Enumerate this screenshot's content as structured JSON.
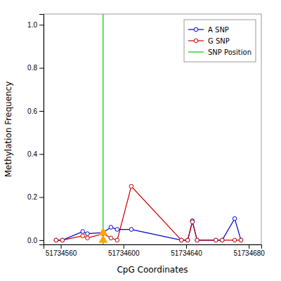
{
  "chart_data": {
    "type": "line",
    "xlabel": "CpG Coordinates",
    "ylabel": "Methylation Frequency",
    "x": [
      51734557,
      51734561,
      51734574,
      51734577,
      51734587,
      51734592,
      51734596,
      51734605,
      51734637,
      51734641,
      51734644,
      51734647,
      51734659,
      51734663,
      51734671,
      51734675
    ],
    "series": [
      {
        "name": "A SNP",
        "color": "#0000CC",
        "marker": "circle",
        "line_style": "solid",
        "values": [
          0.0,
          0.0,
          0.04,
          0.03,
          0.035,
          0.06,
          0.05,
          0.05,
          0.0,
          0.0,
          0.09,
          0.0,
          0.0,
          0.0,
          0.1,
          0.0
        ]
      },
      {
        "name": "G SNP",
        "color": "#CC0000",
        "marker": "circle",
        "line_style": "solid",
        "values": [
          0.0,
          0.0,
          0.02,
          0.01,
          0.03,
          0.01,
          0.0,
          0.25,
          0.0,
          0.0,
          0.085,
          0.0,
          0.0,
          0.0,
          0.0,
          0.0
        ]
      }
    ],
    "vlines": [
      {
        "name": "SNP Position",
        "x": 51734587,
        "color": "#00CC00"
      }
    ],
    "points": {
      "x": 51734587,
      "values": [
        0.0,
        0.035
      ],
      "color": "#FFA500",
      "marker": "triangle"
    },
    "xlim": [
      51734549,
      51734688
    ],
    "ylim": [
      -0.02,
      1.05
    ],
    "xticks": [
      51734560,
      51734600,
      51734640,
      51734680
    ],
    "yticks": [
      {
        "value": 0.0,
        "label": "0.0"
      },
      0.2,
      0.4,
      0.6,
      0.8,
      {
        "value": 1.0,
        "label": "1.0"
      }
    ],
    "grid": false,
    "legend": "upper right"
  }
}
